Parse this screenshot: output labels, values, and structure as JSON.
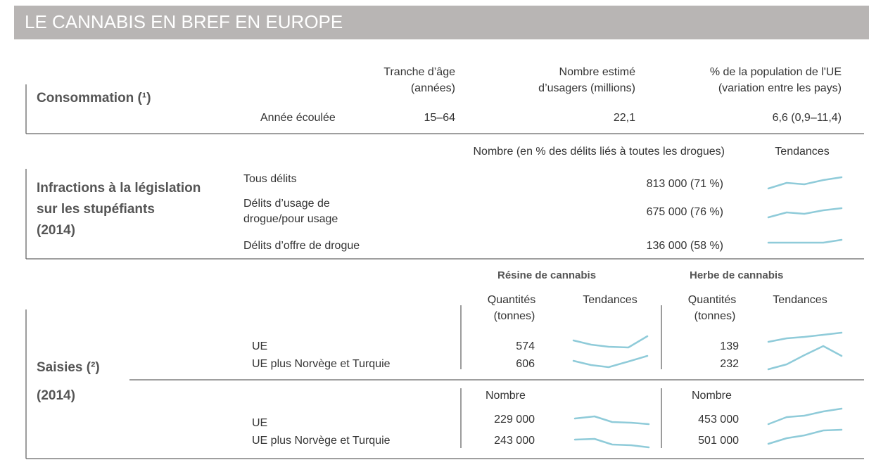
{
  "title": "LE CANNABIS EN BREF EN EUROPE",
  "consumption": {
    "label": "Consommation (¹)",
    "columns": [
      [
        "Tranche d’âge",
        "(années)"
      ],
      [
        "Nombre estimé",
        "d’usagers (millions)"
      ],
      [
        "% de la population de l'UE",
        "(variation entre les pays)"
      ]
    ],
    "row": {
      "label": "Année écoulée",
      "values": [
        "15–64",
        "22,1",
        "6,6 (0,9–11,4)"
      ]
    }
  },
  "offences": {
    "label": [
      "Infractions à la législation",
      "sur les stupéfiants",
      "(2014)"
    ],
    "columns": [
      "Nombre (en % des délits liés à toutes les drogues)",
      "Tendances"
    ],
    "rows": [
      {
        "label": [
          "Tous délits"
        ],
        "value": "813 000 (71 %)"
      },
      {
        "label": [
          "Délits d’usage de",
          "drogue/pour usage"
        ],
        "value": "675 000 (76 %)"
      },
      {
        "label": [
          "Délits d’offre de drogue"
        ],
        "value": "136 000 (58 %)"
      }
    ]
  },
  "seizures": {
    "label": "Saisies (²)",
    "year": "(2014)",
    "groups": [
      {
        "name": "Résine de cannabis",
        "quantity_header": [
          "Quantités",
          "(tonnes)"
        ],
        "trend_header": "Tendances",
        "number_header": "Nombre"
      },
      {
        "name": "Herbe de cannabis",
        "quantity_header": [
          "Quantités",
          "(tonnes)"
        ],
        "trend_header": "Tendances",
        "number_header": "Nombre"
      }
    ],
    "quantity_rows": [
      {
        "label": "UE",
        "values": [
          "574",
          "139"
        ]
      },
      {
        "label": "UE plus Norvège et Turquie",
        "values": [
          "606",
          "232"
        ]
      }
    ],
    "number_rows": [
      {
        "label": "UE",
        "values": [
          "229 000",
          "453 000"
        ]
      },
      {
        "label": "UE plus Norvège et Turquie",
        "values": [
          "243 000",
          "501 000"
        ]
      }
    ]
  }
}
